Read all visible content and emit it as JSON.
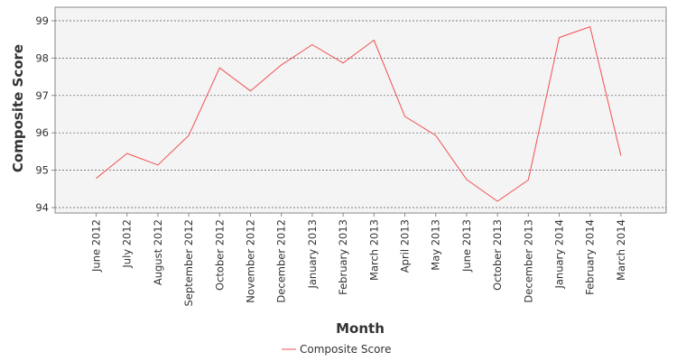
{
  "chart_data": {
    "type": "line",
    "xlabel": "Month",
    "ylabel": "Composite Score",
    "ylim": [
      94,
      99
    ],
    "yticks": [
      94,
      95,
      96,
      97,
      98,
      99
    ],
    "grid": true,
    "legend_position": "bottom-center",
    "categories": [
      "June 2012",
      "July 2012",
      "August 2012",
      "September 2012",
      "October 2012",
      "November 2012",
      "December 2012",
      "January 2013",
      "February 2013",
      "March 2013",
      "April 2013",
      "May 2013",
      "June 2013",
      "October 2013",
      "December 2013",
      "January 2014",
      "February 2014",
      "March 2014"
    ],
    "series": [
      {
        "name": "Composite Score",
        "color": "#f05050",
        "values": [
          94.78,
          95.45,
          95.14,
          95.93,
          97.74,
          97.12,
          97.82,
          98.36,
          97.87,
          98.48,
          96.44,
          95.93,
          94.75,
          94.17,
          94.74,
          98.55,
          98.84,
          95.39
        ]
      }
    ]
  }
}
